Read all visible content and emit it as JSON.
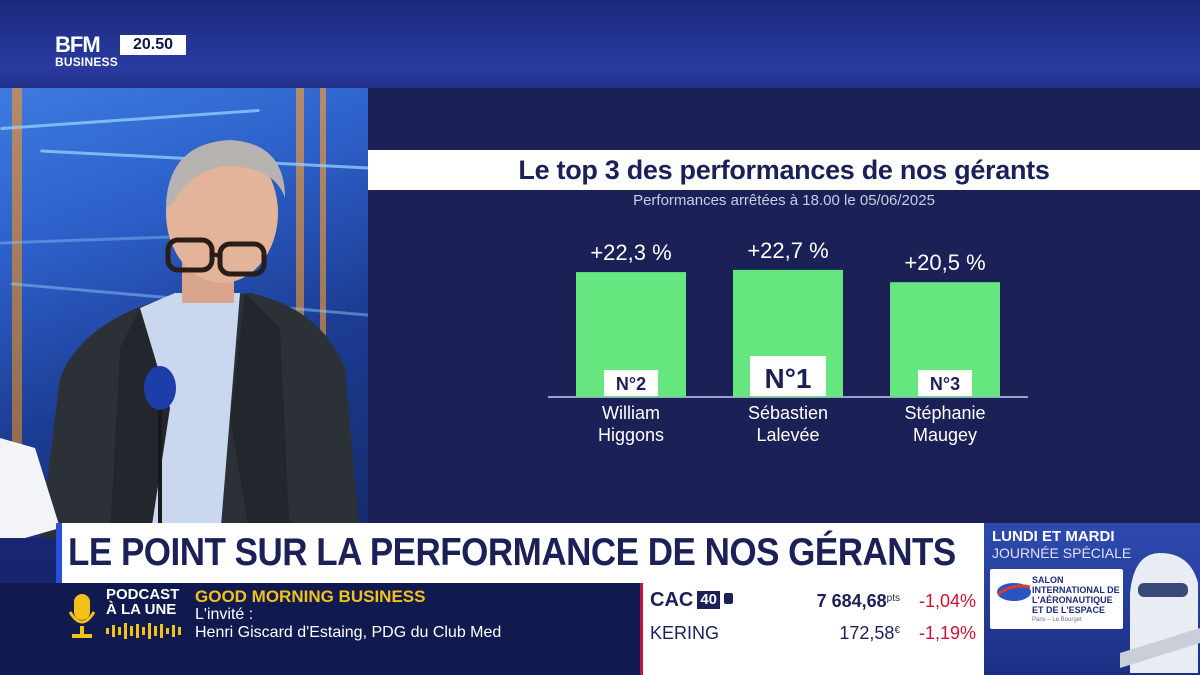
{
  "logo": {
    "brand": "BFM",
    "sub": "BUSINESS",
    "time": "20.50"
  },
  "panel": {
    "title": "Le top 3 des performances de nos gérants",
    "subtitle": "Performances arrêtées à 18.00 le 05/06/2025"
  },
  "chart_data": {
    "type": "bar",
    "title": "Le top 3 des performances de nos gérants",
    "subtitle": "Performances arrêtées à 18.00 le 05/06/2025",
    "unit": "%",
    "categories": [
      "William Higgons",
      "Sébastien Lalevée",
      "Stéphanie Maugey"
    ],
    "name_lines": [
      [
        "William",
        "Higgons"
      ],
      [
        "Sébastien",
        "Lalevée"
      ],
      [
        "Stéphanie",
        "Maugey"
      ]
    ],
    "values": [
      22.3,
      22.7,
      20.5
    ],
    "value_labels": [
      "+22,3 %",
      "+22,7 %",
      "+20,5 %"
    ],
    "ranks": [
      "N°2",
      "N°1",
      "N°3"
    ],
    "bar_color": "#66e67e",
    "ylim": [
      0,
      25
    ]
  },
  "headline": "LE POINT SUR LA PERFORMANCE DE NOS GÉRANTS",
  "special": {
    "line1": "LUNDI ET MARDI",
    "line2": "JOURNÉE SPÉCIALE",
    "salon_title": "SALON INTERNATIONAL DE L'AÉRONAUTIQUE ET DE L'ESPACE",
    "salon_sub": "Paris – Le Bourget"
  },
  "ticker": {
    "podcast_l1": "PODCAST",
    "podcast_l2": "À LA UNE",
    "show": "GOOD MORNING BUSINESS",
    "guest_label": "L'invité :",
    "guest_name": "Henri Giscard d'Estaing, PDG du Club Med"
  },
  "market": [
    {
      "symbol": "CAC",
      "badge": "40",
      "value": "7 684,68",
      "unit": "pts",
      "change": "-1,04%"
    },
    {
      "symbol": "KERING",
      "value": "172,58",
      "unit": "€",
      "change": "-1,19%"
    }
  ],
  "colors": {
    "navy": "#1b2157",
    "accent": "#f2c21b",
    "down": "#d01030"
  }
}
